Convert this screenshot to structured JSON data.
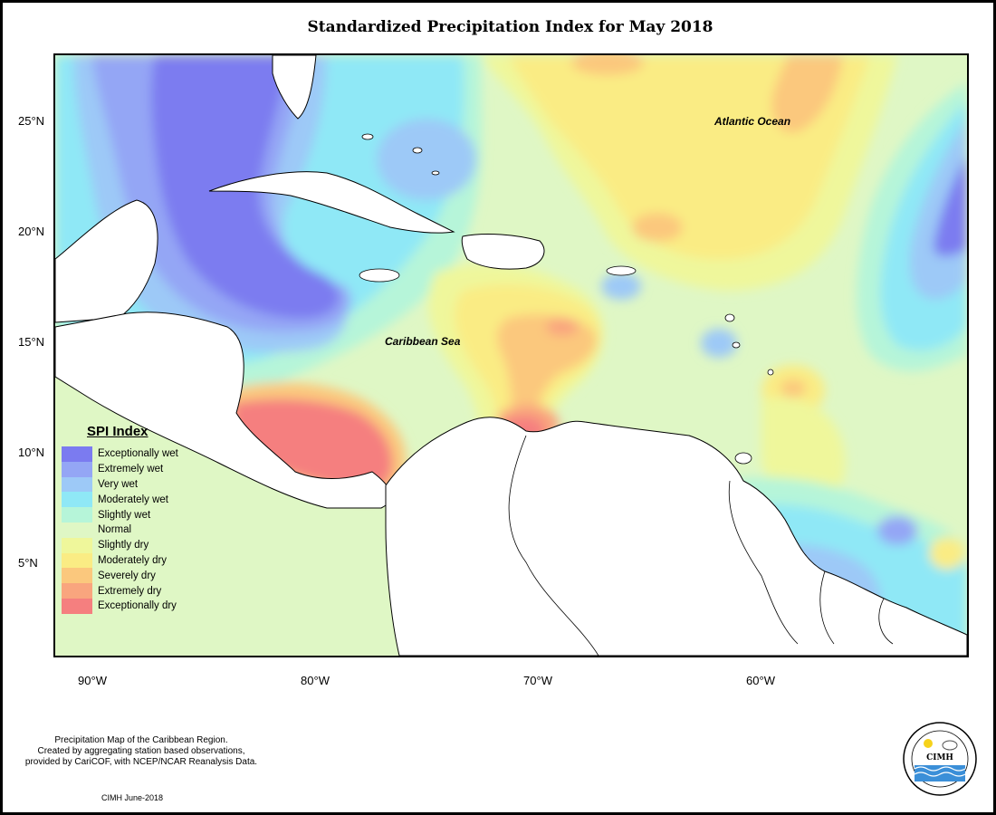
{
  "title": "Standardized Precipitation Index for May 2018",
  "lat_ticks": [
    "25°N",
    "20°N",
    "15°N",
    "10°N",
    "5°N"
  ],
  "lon_ticks": [
    "90°W",
    "80°W",
    "70°W",
    "60°W"
  ],
  "ocean_labels": {
    "atlantic": "Atlantic Ocean",
    "caribbean": "Caribbean Sea"
  },
  "legend": {
    "title": "SPI Index",
    "items": [
      {
        "label": "Exceptionally wet",
        "color": "#7b7bf0"
      },
      {
        "label": "Extremely wet",
        "color": "#94a6f5"
      },
      {
        "label": "Very wet",
        "color": "#9dc9f7"
      },
      {
        "label": "Moderately wet",
        "color": "#8fe8f6"
      },
      {
        "label": "Slightly wet",
        "color": "#b6f5d9"
      },
      {
        "label": "Normal",
        "color": "#dff7c5"
      },
      {
        "label": "Slightly dry",
        "color": "#eff79b"
      },
      {
        "label": "Moderately dry",
        "color": "#faec84"
      },
      {
        "label": "Severely dry",
        "color": "#fbc87d"
      },
      {
        "label": "Extremely dry",
        "color": "#f9a57e"
      },
      {
        "label": "Exceptionally dry",
        "color": "#f57f7f"
      }
    ]
  },
  "footnote": {
    "line1": "Precipitation Map of the Caribbean Region.",
    "line2": "Created by aggregating station based observations,",
    "line3": "provided by CariCOF, with NCEP/NCAR Reanalysis Data."
  },
  "credit": "CIMH June-2018",
  "logo": {
    "text": "CIMH",
    "name": "cimh-logo"
  }
}
